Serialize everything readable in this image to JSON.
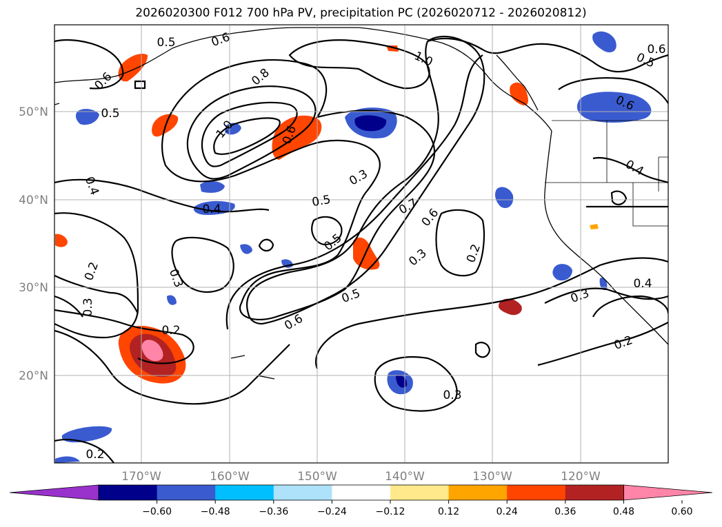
{
  "title": "2026020300 F012 700 hPa PV, precipitation PC (2026020712 - 2026020812)",
  "lat_labels": [
    "50°N",
    "40°N",
    "30°N",
    "20°N"
  ],
  "lon_labels": [
    "170°W",
    "160°W",
    "150°W",
    "140°W",
    "130°W",
    "120°W"
  ],
  "colorbar": {
    "colors": [
      "#9932CC",
      "#00008B",
      "#3A5BCF",
      "#00BFFF",
      "#ADE2FA",
      "#FFFFFF",
      "#FFE98A",
      "#FFA500",
      "#FF4500",
      "#B22222",
      "#FF85A8"
    ],
    "ticks": [
      "−0.60",
      "−0.48",
      "−0.36",
      "−0.24",
      "−0.12",
      "0.12",
      "0.24",
      "0.36",
      "0.48",
      "0.60"
    ]
  },
  "contour_labels": [
    "0.5",
    "0.6",
    "0.6",
    "1.0",
    "0.6",
    "0.5",
    "0.6",
    "0.8",
    "1.0",
    "0.6",
    "0.4",
    "0.3",
    "0.4",
    "0.5",
    "0.7",
    "0.6",
    "0.5",
    "0.4",
    "0.2",
    "0.3",
    "0.2",
    "0.3",
    "0.5",
    "0.6",
    "0.3",
    "0.2",
    "0.3",
    "0.4",
    "0.2",
    "0.3",
    "0.2",
    "0.5"
  ]
}
